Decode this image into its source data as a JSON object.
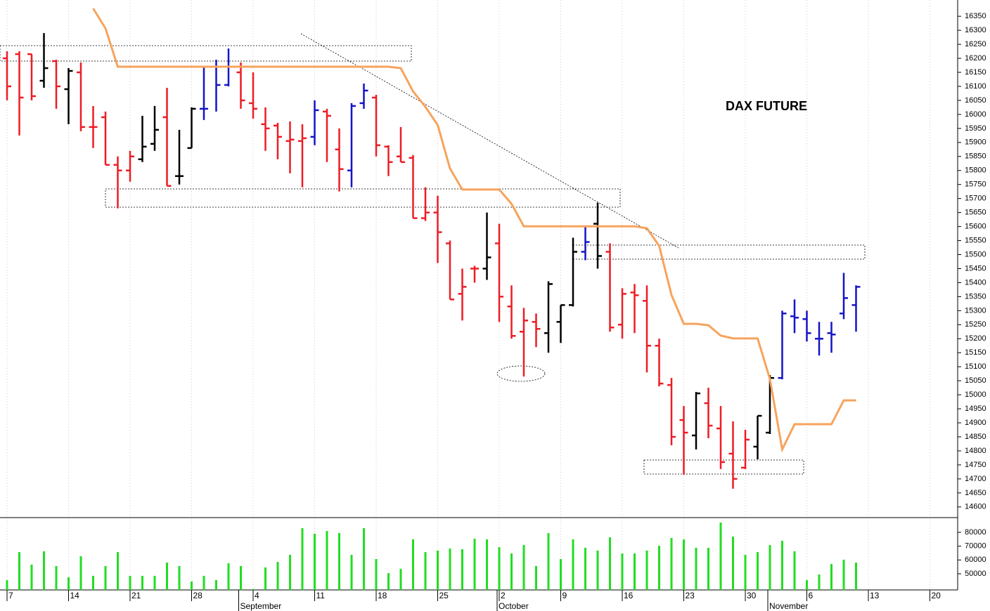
{
  "chart_data": [
    {
      "type": "ohlc",
      "title": "DAX FUTURE",
      "categories": [
        "7",
        null,
        null,
        null,
        null,
        "14",
        null,
        null,
        null,
        null,
        "21",
        null,
        null,
        null,
        null,
        "28",
        null,
        null,
        null,
        null,
        "4",
        null,
        null,
        null,
        null,
        "11",
        null,
        null,
        null,
        null,
        "18",
        null,
        null,
        null,
        null,
        "25",
        null,
        null,
        null,
        null,
        "2",
        null,
        null,
        null,
        null,
        "9",
        null,
        null,
        null,
        null,
        "16",
        null,
        null,
        null,
        null,
        "23",
        null,
        null,
        null,
        null,
        "30",
        null,
        null,
        null,
        null,
        "6",
        null,
        null,
        null,
        null,
        "13",
        null,
        null,
        null,
        null,
        "20"
      ],
      "months": [
        null,
        null,
        null,
        null,
        null,
        null,
        null,
        null,
        null,
        null,
        null,
        null,
        null,
        null,
        null,
        null,
        null,
        null,
        null,
        "September",
        null,
        null,
        null,
        null,
        null,
        null,
        null,
        null,
        null,
        null,
        null,
        null,
        null,
        null,
        null,
        null,
        null,
        null,
        null,
        null,
        "October",
        null,
        null,
        null,
        null,
        null,
        null,
        null,
        null,
        null,
        null,
        null,
        null,
        null,
        null,
        null,
        null,
        null,
        null,
        null,
        null,
        null,
        "November",
        null,
        null,
        null,
        null,
        null,
        null,
        null,
        null,
        null,
        null,
        null,
        null,
        null
      ],
      "open": [
        16200,
        16215,
        16215,
        16120,
        16190,
        16090,
        16150,
        15955,
        15990,
        15820,
        15800,
        15840,
        15895,
        15990,
        15780,
        15880,
        16020,
        16170,
        16105,
        16150,
        16040,
        15965,
        15960,
        15905,
        15905,
        15920,
        16010,
        15875,
        15800,
        16040,
        16060,
        15885,
        15850,
        15845,
        15630,
        15650,
        15540,
        15360,
        15450,
        15450,
        15540,
        15315,
        15225,
        15260,
        15220,
        15260,
        15320,
        15510,
        15610,
        15510,
        15250,
        15365,
        15335,
        15175,
        15035,
        14910,
        14855,
        14970,
        14880,
        14790,
        14740,
        14815,
        14865,
        15060,
        15280,
        15270,
        15200,
        15220,
        15290,
        15320,
        null,
        null,
        null,
        null,
        null,
        null
      ],
      "high": [
        16225,
        16225,
        16215,
        16290,
        16195,
        16165,
        16185,
        16030,
        16010,
        15850,
        15870,
        15995,
        16030,
        16095,
        15945,
        16025,
        16170,
        16195,
        16235,
        16185,
        16150,
        16025,
        15970,
        15975,
        15965,
        16050,
        16020,
        15950,
        16040,
        16110,
        16070,
        15890,
        15955,
        15855,
        15740,
        15710,
        15550,
        15450,
        15460,
        15650,
        15610,
        15390,
        15310,
        15290,
        15405,
        15320,
        15560,
        15600,
        15685,
        15540,
        15380,
        15395,
        15390,
        15200,
        15060,
        14960,
        15010,
        15025,
        14960,
        14905,
        14875,
        14925,
        15070,
        15300,
        15340,
        15300,
        15260,
        15260,
        15435,
        15390,
        null,
        null,
        null,
        null,
        null,
        null
      ],
      "low": [
        16050,
        15925,
        16050,
        16095,
        16020,
        15965,
        15940,
        15880,
        15820,
        15665,
        15760,
        15830,
        15870,
        15745,
        15750,
        15880,
        15980,
        16010,
        16100,
        16020,
        15985,
        15870,
        15840,
        15790,
        15740,
        15890,
        15830,
        15725,
        15740,
        16020,
        15850,
        15780,
        15830,
        15630,
        15620,
        15470,
        15340,
        15265,
        15400,
        15410,
        15260,
        15200,
        15065,
        15170,
        15150,
        15185,
        15315,
        15480,
        15450,
        15225,
        15200,
        15220,
        15080,
        15030,
        14820,
        14715,
        14805,
        14845,
        14735,
        14665,
        14735,
        14770,
        14860,
        15055,
        15220,
        15190,
        15140,
        15150,
        15270,
        15225,
        null,
        null,
        null,
        null,
        null,
        null
      ],
      "close": [
        16100,
        16060,
        16065,
        16165,
        16100,
        16155,
        15955,
        15955,
        15820,
        15800,
        15850,
        15885,
        15945,
        15745,
        15780,
        16020,
        16020,
        16105,
        16170,
        16050,
        16020,
        15950,
        15920,
        15910,
        15915,
        16015,
        15995,
        15805,
        16030,
        16085,
        15890,
        15830,
        15830,
        15630,
        15650,
        15580,
        15340,
        15385,
        15450,
        15490,
        15350,
        15210,
        15265,
        15235,
        15395,
        15320,
        15510,
        15545,
        15495,
        15240,
        15360,
        15355,
        15175,
        15040,
        14850,
        14865,
        15005,
        14890,
        14760,
        14700,
        14840,
        14925,
        15060,
        15290,
        15275,
        15220,
        15200,
        15215,
        15345,
        15385,
        null,
        null,
        null,
        null,
        null,
        null
      ],
      "colors": [
        "#ee1c24",
        "#ee1c24",
        "#ee1c24",
        "#000000",
        "#ee1c24",
        "#000000",
        "#ee1c24",
        "#ee1c24",
        "#ee1c24",
        "#ee1c24",
        "#ee1c24",
        "#000000",
        "#000000",
        "#ee1c24",
        "#000000",
        "#000000",
        "#1414c8",
        "#1414c8",
        "#1414c8",
        "#ee1c24",
        "#ee1c24",
        "#ee1c24",
        "#ee1c24",
        "#ee1c24",
        "#ee1c24",
        "#1414c8",
        "#ee1c24",
        "#ee1c24",
        "#1414c8",
        "#1414c8",
        "#ee1c24",
        "#ee1c24",
        "#ee1c24",
        "#ee1c24",
        "#ee1c24",
        "#ee1c24",
        "#ee1c24",
        "#ee1c24",
        "#ee1c24",
        "#000000",
        "#ee1c24",
        "#ee1c24",
        "#ee1c24",
        "#ee1c24",
        "#000000",
        "#000000",
        "#000000",
        "#1414c8",
        "#000000",
        "#ee1c24",
        "#ee1c24",
        "#ee1c24",
        "#ee1c24",
        "#ee1c24",
        "#ee1c24",
        "#ee1c24",
        "#000000",
        "#ee1c24",
        "#ee1c24",
        "#ee1c24",
        "#ee1c24",
        "#000000",
        "#000000",
        "#1414c8",
        "#1414c8",
        "#1414c8",
        "#1414c8",
        "#1414c8",
        "#1414c8",
        "#1414c8",
        null,
        null,
        null,
        null,
        null,
        null
      ],
      "line": {
        "color": "#f7a35c",
        "values": [
          null,
          null,
          null,
          null,
          null,
          null,
          null,
          16378,
          16307,
          16170,
          16170,
          16170,
          16170,
          16170,
          16170,
          16170,
          16170,
          16170,
          16170,
          16170,
          16170,
          16170,
          16170,
          16170,
          16170,
          16170,
          16170,
          16170,
          16170,
          16170,
          16170,
          16170,
          16165,
          16082,
          16027,
          15962,
          15807,
          15732,
          15732,
          15732,
          15732,
          15681,
          15601,
          15601,
          15601,
          15601,
          15601,
          15601,
          15601,
          15601,
          15601,
          15601,
          15594,
          15531,
          15356,
          15253,
          15253,
          15248,
          15211,
          15201,
          15201,
          15201,
          15056,
          14805,
          14895,
          14895,
          14895,
          14895,
          14980,
          14980,
          null,
          null,
          null,
          null,
          null,
          null
        ]
      },
      "ylim": [
        14562,
        16408
      ],
      "yticks": [
        14600,
        14650,
        14700,
        14750,
        14800,
        14850,
        14900,
        14950,
        15000,
        15050,
        15100,
        15150,
        15200,
        15250,
        15300,
        15350,
        15400,
        15450,
        15500,
        15550,
        15600,
        15650,
        15700,
        15750,
        15800,
        15850,
        15900,
        15950,
        16000,
        16050,
        16100,
        16150,
        16200,
        16250,
        16300,
        16350
      ],
      "grid": true
    },
    {
      "type": "bar",
      "color": "#22dd22",
      "values": [
        45400,
        65700,
        56600,
        66300,
        55600,
        47500,
        62700,
        48500,
        55600,
        65700,
        48500,
        48500,
        48500,
        58100,
        55600,
        44400,
        48500,
        45400,
        57600,
        55600,
        39000,
        54600,
        58600,
        63700,
        83000,
        79000,
        81000,
        79500,
        63700,
        83000,
        60700,
        50500,
        53600,
        74900,
        65700,
        66800,
        68300,
        67800,
        75400,
        74900,
        69300,
        64700,
        70800,
        55600,
        79500,
        60700,
        74900,
        68800,
        66800,
        76400,
        64700,
        64700,
        66800,
        70300,
        75900,
        74900,
        68800,
        68800,
        87100,
        76900,
        63700,
        65700,
        70800,
        73900,
        66300,
        45400,
        49500,
        57100,
        60200,
        58100,
        null,
        null,
        null,
        null,
        null,
        null
      ],
      "ylim": [
        38300,
        90170
      ],
      "yticks": [
        50000,
        60000,
        70000,
        80000
      ]
    }
  ]
}
